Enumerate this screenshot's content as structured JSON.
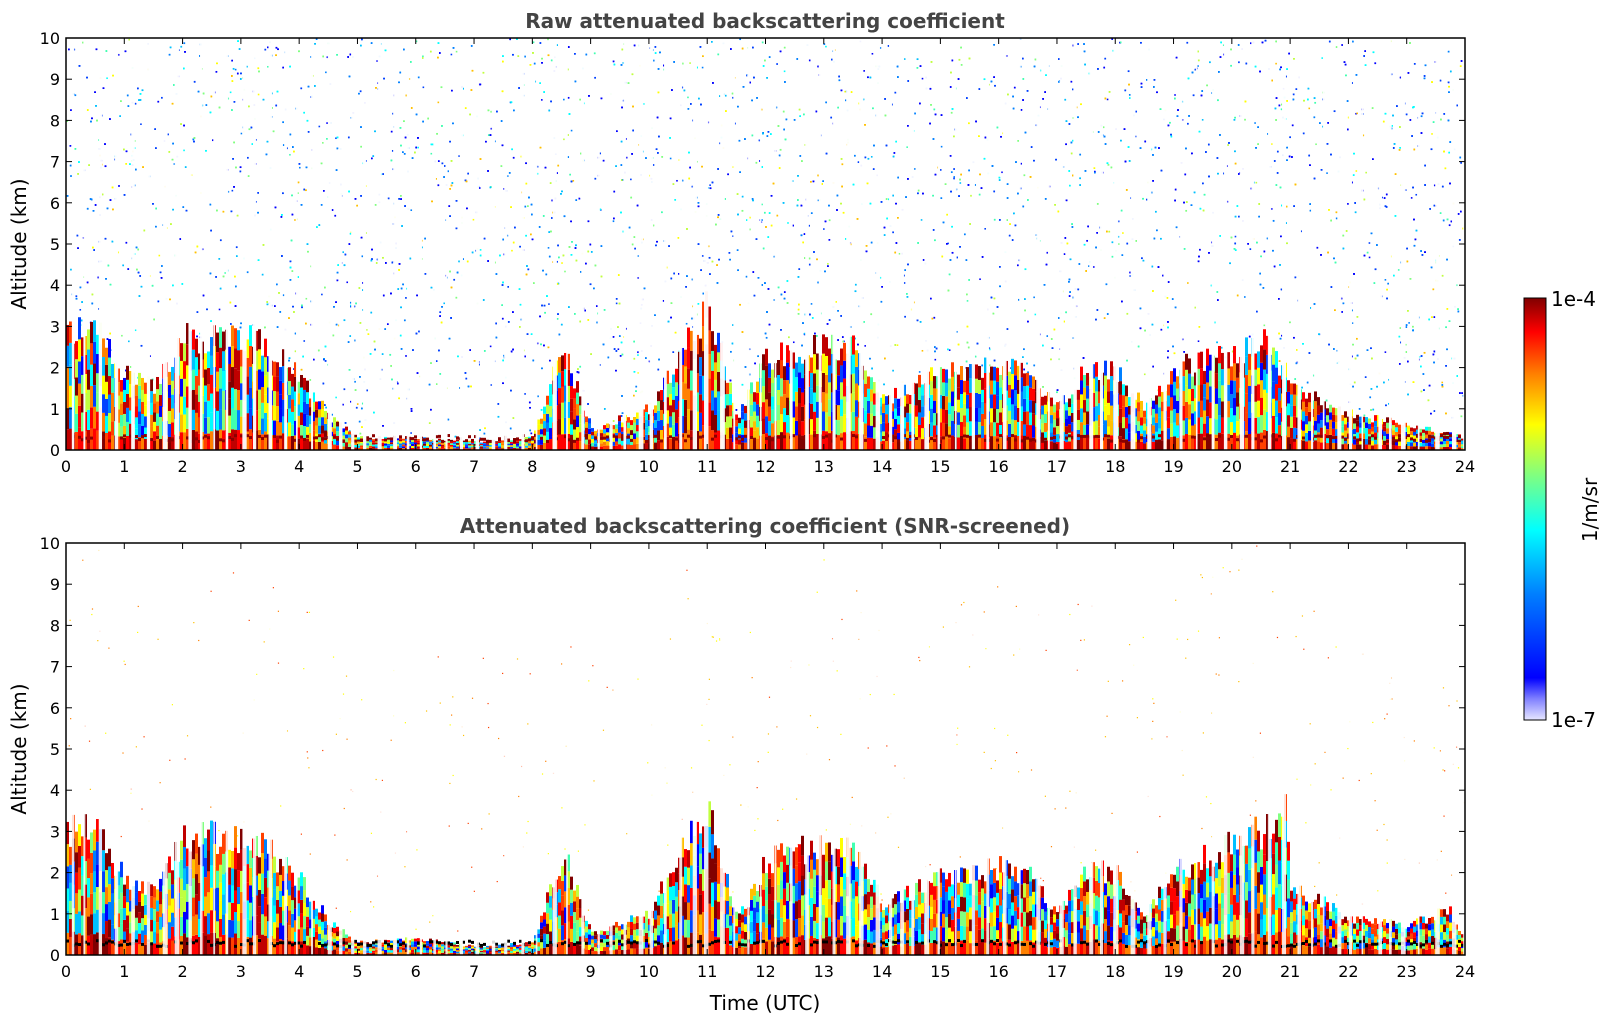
{
  "chart_data": [
    {
      "type": "heatmap",
      "title": "Raw attenuated backscattering coefficient",
      "xlabel": "",
      "ylabel": "Altitude (km)",
      "xlim": [
        0,
        24
      ],
      "ylim": [
        0,
        10
      ],
      "x_ticks": [
        "0",
        "1",
        "2",
        "3",
        "4",
        "5",
        "6",
        "7",
        "8",
        "9",
        "10",
        "11",
        "12",
        "13",
        "14",
        "15",
        "16",
        "17",
        "18",
        "19",
        "20",
        "21",
        "22",
        "23",
        "24"
      ],
      "y_ticks": [
        "0",
        "1",
        "2",
        "3",
        "4",
        "5",
        "6",
        "7",
        "8",
        "9",
        "10"
      ],
      "grid": false,
      "colorscale": "jet",
      "boundary_layer_top_km": [
        [
          0,
          2.9
        ],
        [
          0.5,
          3.0
        ],
        [
          1,
          1.8
        ],
        [
          1.5,
          1.6
        ],
        [
          2,
          2.7
        ],
        [
          3,
          2.8
        ],
        [
          3.5,
          2.5
        ],
        [
          4,
          1.8
        ],
        [
          4.5,
          0.8
        ],
        [
          5,
          0.3
        ],
        [
          6,
          0.3
        ],
        [
          7,
          0.2
        ],
        [
          8,
          0.3
        ],
        [
          8.5,
          2.5
        ],
        [
          9,
          0.5
        ],
        [
          10,
          1.0
        ],
        [
          10.5,
          2.2
        ],
        [
          11,
          3.5
        ],
        [
          11.5,
          0.8
        ],
        [
          12,
          2.2
        ],
        [
          13,
          2.6
        ],
        [
          13.5,
          2.5
        ],
        [
          14,
          1.2
        ],
        [
          15,
          1.9
        ],
        [
          16,
          2.0
        ],
        [
          16.5,
          1.9
        ],
        [
          17,
          1.0
        ],
        [
          17.5,
          2.0
        ],
        [
          18,
          1.9
        ],
        [
          18.5,
          1.0
        ],
        [
          19,
          2.0
        ],
        [
          20,
          2.3
        ],
        [
          20.5,
          2.8
        ],
        [
          21,
          1.6
        ],
        [
          22,
          0.9
        ],
        [
          23,
          0.6
        ],
        [
          24,
          0.3
        ]
      ],
      "upper_noise_altitude_km": [
        0.3,
        10
      ]
    },
    {
      "type": "heatmap",
      "title": "Attenuated backscattering coefficient (SNR-screened)",
      "xlabel": "Time (UTC)",
      "ylabel": "Altitude (km)",
      "xlim": [
        0,
        24
      ],
      "ylim": [
        0,
        10
      ],
      "x_ticks": [
        "0",
        "1",
        "2",
        "3",
        "4",
        "5",
        "6",
        "7",
        "8",
        "9",
        "10",
        "11",
        "12",
        "13",
        "14",
        "15",
        "16",
        "17",
        "18",
        "19",
        "20",
        "21",
        "22",
        "23",
        "24"
      ],
      "y_ticks": [
        "0",
        "1",
        "2",
        "3",
        "4",
        "5",
        "6",
        "7",
        "8",
        "9",
        "10"
      ],
      "grid": false,
      "colorscale": "jet",
      "boundary_layer_top_km": [
        [
          0,
          3.0
        ],
        [
          0.5,
          3.1
        ],
        [
          1,
          1.8
        ],
        [
          1.5,
          1.6
        ],
        [
          2,
          2.9
        ],
        [
          3,
          2.8
        ],
        [
          3.5,
          2.5
        ],
        [
          4,
          1.8
        ],
        [
          4.5,
          0.8
        ],
        [
          5,
          0.3
        ],
        [
          6,
          0.4
        ],
        [
          7,
          0.2
        ],
        [
          8,
          0.3
        ],
        [
          8.5,
          2.5
        ],
        [
          9,
          0.5
        ],
        [
          10,
          1.0
        ],
        [
          10.5,
          2.5
        ],
        [
          11,
          3.7
        ],
        [
          11.5,
          0.8
        ],
        [
          12,
          2.3
        ],
        [
          13,
          2.7
        ],
        [
          13.5,
          2.6
        ],
        [
          14,
          1.2
        ],
        [
          15,
          1.9
        ],
        [
          16,
          2.1
        ],
        [
          16.5,
          2.0
        ],
        [
          17,
          1.0
        ],
        [
          17.5,
          2.0
        ],
        [
          18,
          2.0
        ],
        [
          18.5,
          1.0
        ],
        [
          19,
          2.0
        ],
        [
          20,
          2.7
        ],
        [
          20.5,
          3.0
        ],
        [
          20.9,
          3.8
        ],
        [
          21,
          1.7
        ],
        [
          22,
          0.9
        ],
        [
          23,
          0.7
        ],
        [
          23.7,
          1.1
        ],
        [
          24,
          0.3
        ]
      ]
    }
  ],
  "colorbar": {
    "max_label": "1e-4",
    "min_label": "1e-7",
    "unit_label": "1/m/sr",
    "scale": "log"
  },
  "colors": {
    "jet": [
      "#00008f",
      "#0000ff",
      "#0080ff",
      "#00ffff",
      "#80ff80",
      "#ffff00",
      "#ff8000",
      "#ff0000",
      "#800000"
    ],
    "title_color": "#444444"
  }
}
